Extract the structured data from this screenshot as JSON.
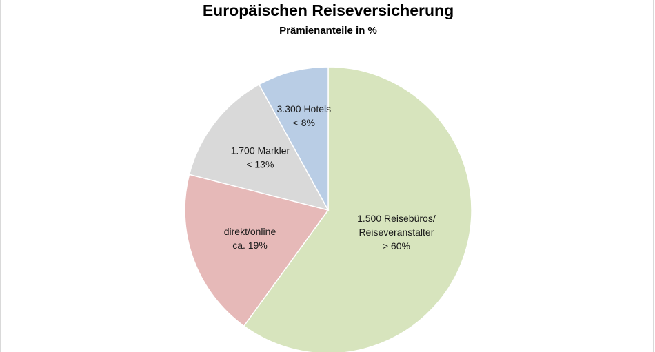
{
  "chart_data": {
    "type": "pie",
    "title": "Europäischen Reiseversicherung",
    "subtitle": "Prämienanteile in %",
    "slices": [
      {
        "label_lines": [
          "1.500 Reisebüros/",
          "Reiseveranstalter",
          "> 60%"
        ],
        "value": 60,
        "color": "#d7e4bd"
      },
      {
        "label_lines": [
          "direkt/online",
          "ca. 19%"
        ],
        "value": 19,
        "color": "#e6b9b8"
      },
      {
        "label_lines": [
          "1.700 Markler",
          "< 13%"
        ],
        "value": 13,
        "color": "#d9d9d9"
      },
      {
        "label_lines": [
          "3.300 Hotels",
          "< 8%"
        ],
        "value": 8,
        "color": "#b9cde5"
      }
    ]
  }
}
